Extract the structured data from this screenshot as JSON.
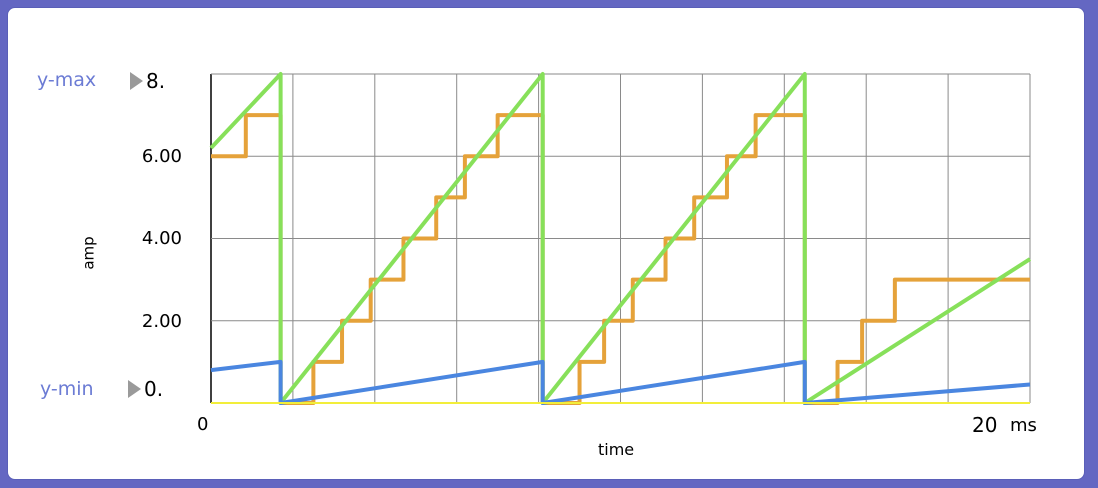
{
  "controls": {
    "ymax_label": "y-max",
    "ymax_value": "8.",
    "ymin_label": "y-min",
    "ymin_value": "0."
  },
  "chart_data": {
    "type": "line",
    "xlabel": "time",
    "ylabel": "amp",
    "x_unit": "ms",
    "x_tick_labels": [
      "0",
      "20"
    ],
    "y_tick_labels": [
      "6.00",
      "4.00",
      "2.00"
    ],
    "xlim": [
      0,
      20
    ],
    "ylim": [
      0,
      8
    ],
    "grid": true,
    "series": [
      {
        "color": "#e5a23a",
        "kind": "step",
        "x": [
          0,
          1,
          1.7,
          4.3,
          6.6,
          9.0,
          11.3,
          13.0,
          17.9,
          20
        ],
        "points": [
          [
            0,
            6
          ],
          [
            0.85,
            6
          ],
          [
            0.85,
            7
          ],
          [
            1.7,
            7
          ],
          [
            1.7,
            0
          ],
          [
            2.5,
            0
          ],
          [
            2.5,
            1
          ],
          [
            3.2,
            1
          ],
          [
            3.2,
            2
          ],
          [
            3.9,
            2
          ],
          [
            3.9,
            3
          ],
          [
            4.7,
            3
          ],
          [
            4.7,
            4
          ],
          [
            5.5,
            4
          ],
          [
            5.5,
            5
          ],
          [
            6.2,
            5
          ],
          [
            6.2,
            6
          ],
          [
            7.0,
            6
          ],
          [
            7.0,
            7
          ],
          [
            8.1,
            7
          ],
          [
            8.1,
            0
          ],
          [
            9.0,
            0
          ],
          [
            9.0,
            1
          ],
          [
            9.6,
            1
          ],
          [
            9.6,
            2
          ],
          [
            10.3,
            2
          ],
          [
            10.3,
            3
          ],
          [
            11.1,
            3
          ],
          [
            11.1,
            4
          ],
          [
            11.8,
            4
          ],
          [
            11.8,
            5
          ],
          [
            12.6,
            5
          ],
          [
            12.6,
            6
          ],
          [
            13.3,
            6
          ],
          [
            13.3,
            7
          ],
          [
            14.5,
            7
          ],
          [
            14.5,
            0
          ],
          [
            15.3,
            0
          ],
          [
            15.3,
            1
          ],
          [
            15.9,
            1
          ],
          [
            15.9,
            2
          ],
          [
            16.7,
            2
          ],
          [
            16.7,
            3
          ],
          [
            20,
            3
          ]
        ]
      },
      {
        "color": "#87e05a",
        "kind": "sawtooth",
        "points": [
          [
            0,
            6.2
          ],
          [
            1.7,
            8
          ],
          [
            1.7,
            0
          ],
          [
            8.1,
            8
          ],
          [
            8.1,
            0
          ],
          [
            14.5,
            8
          ],
          [
            14.5,
            0
          ],
          [
            20,
            3.5
          ]
        ]
      },
      {
        "color": "#4a86e0",
        "kind": "sawtooth",
        "points": [
          [
            0,
            0.8
          ],
          [
            1.7,
            1.0
          ],
          [
            1.7,
            0
          ],
          [
            8.1,
            1.0
          ],
          [
            8.1,
            0
          ],
          [
            14.5,
            1.0
          ],
          [
            14.5,
            0
          ],
          [
            20,
            0.45
          ]
        ]
      },
      {
        "color": "#f2ee3a",
        "kind": "flat",
        "points": [
          [
            0,
            0
          ],
          [
            20,
            0
          ]
        ]
      }
    ]
  }
}
